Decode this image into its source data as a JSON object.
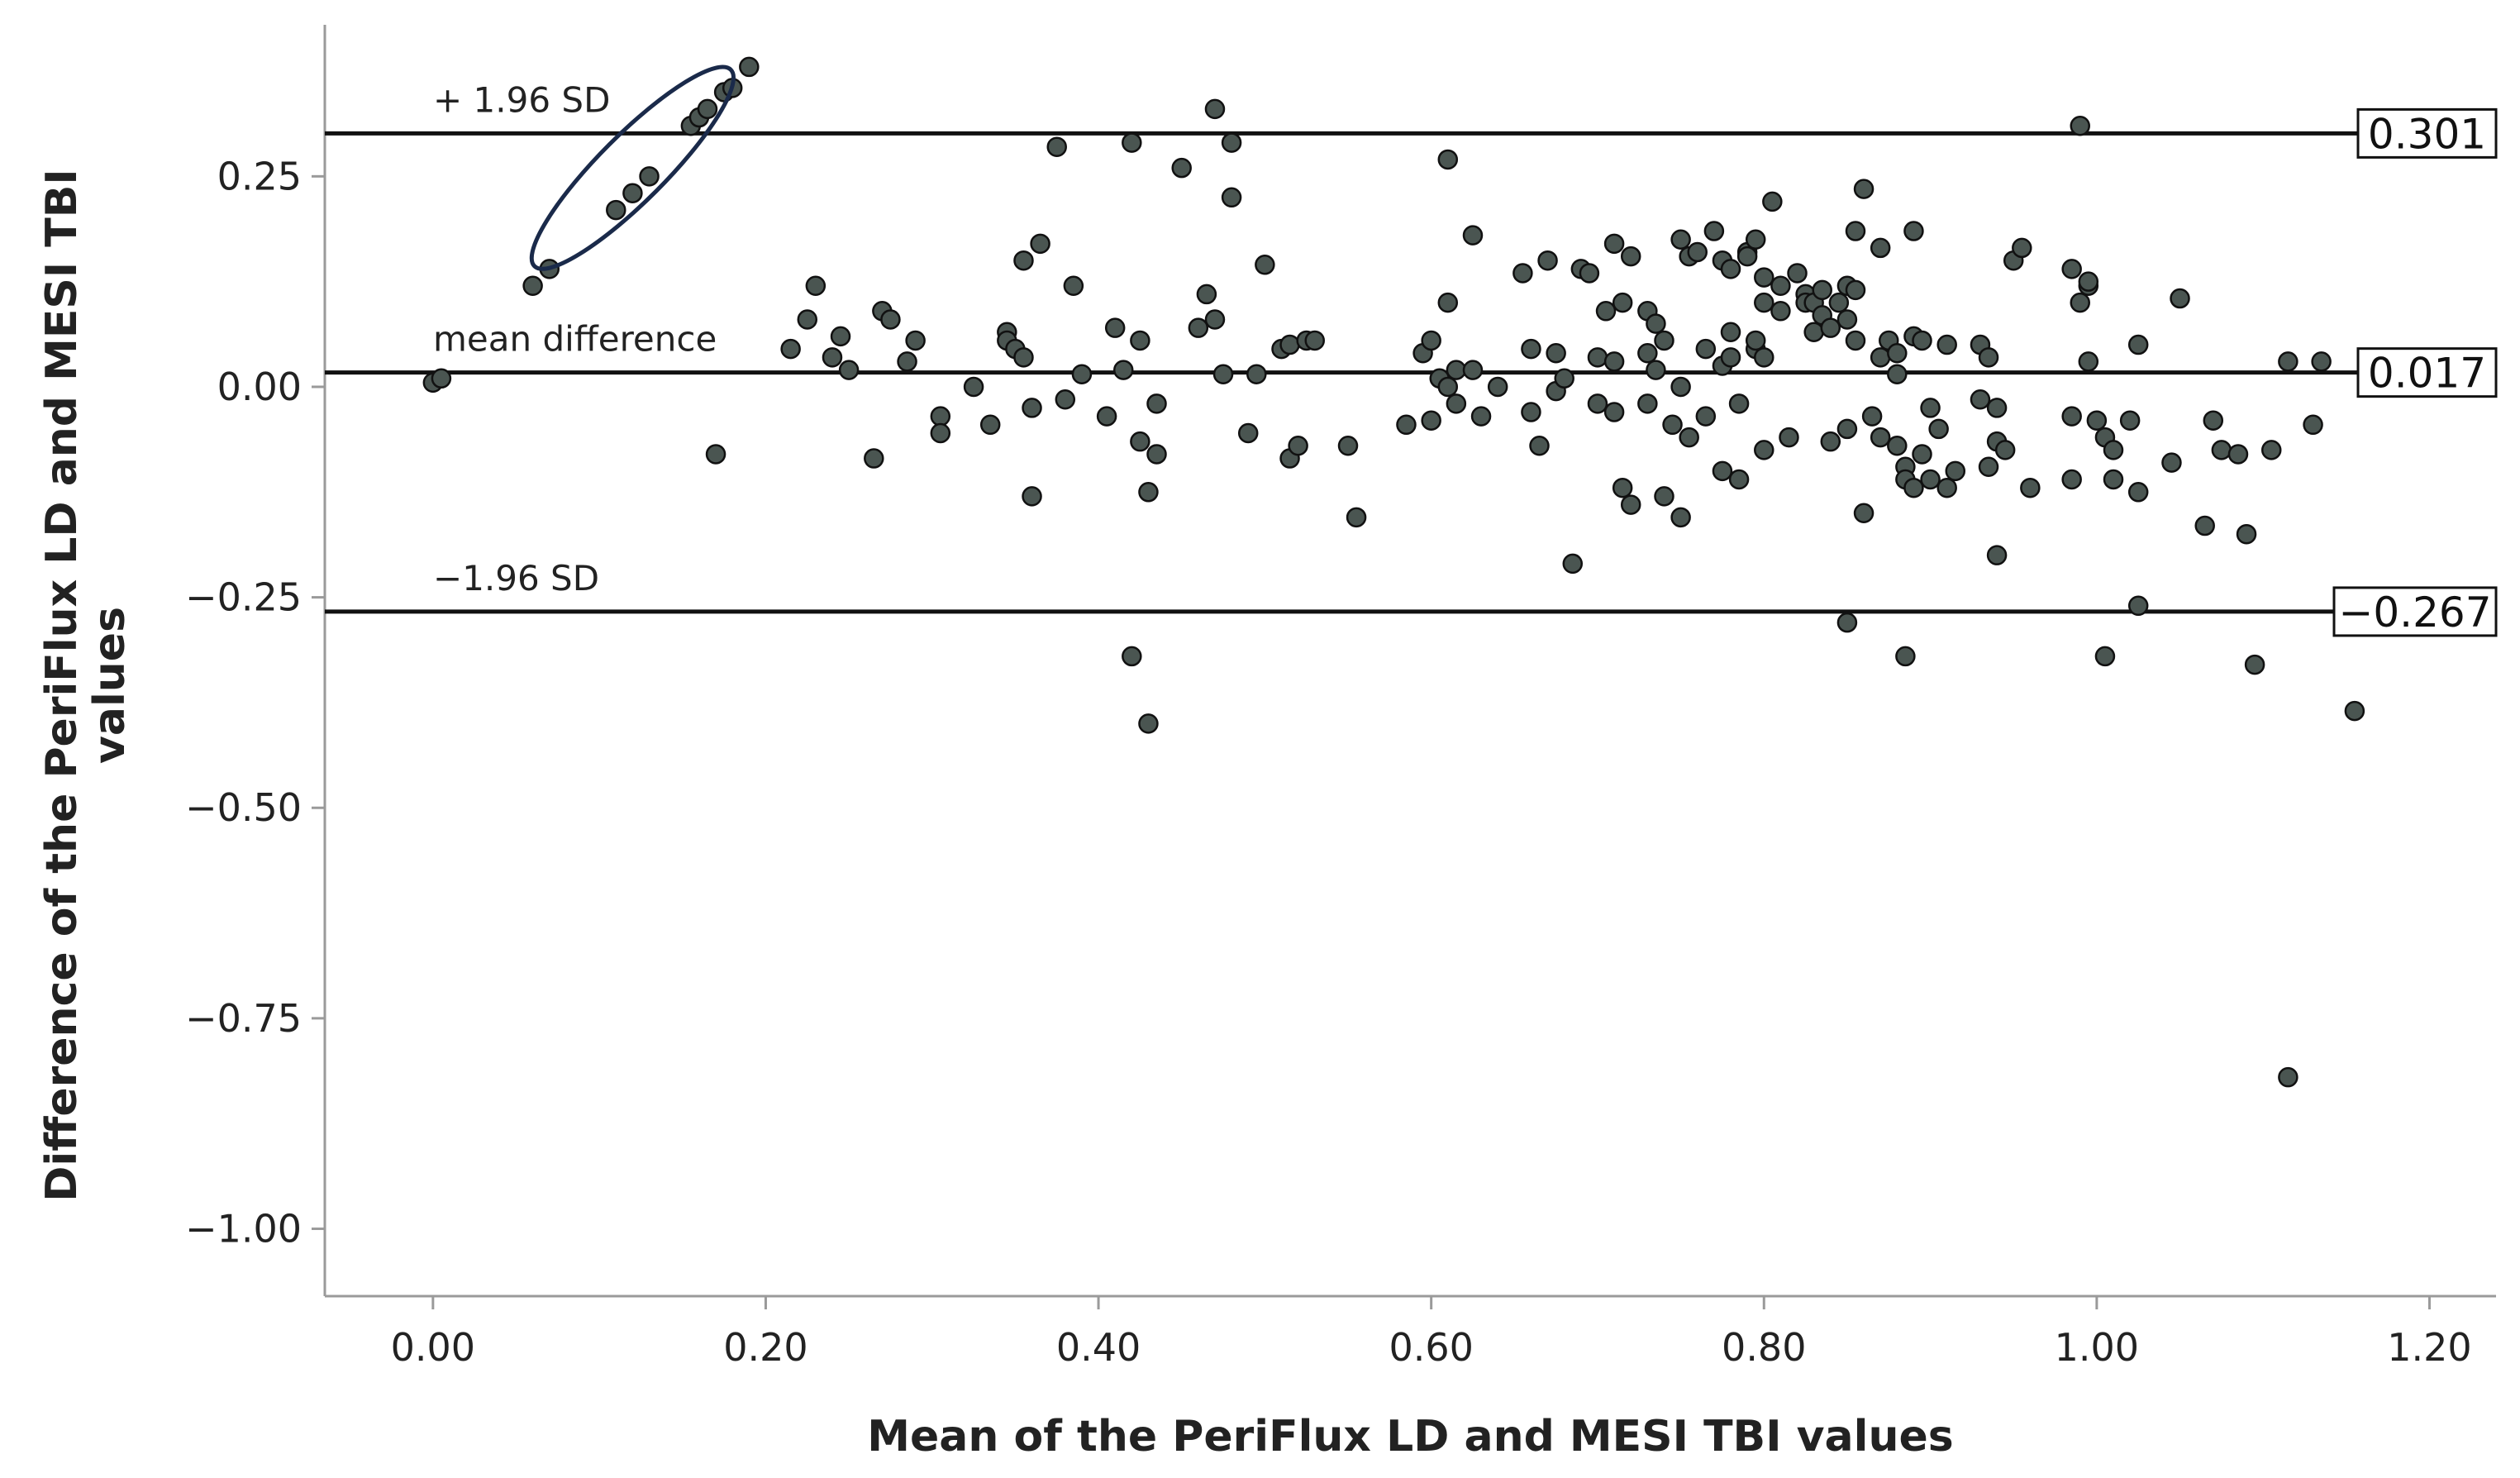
{
  "chart_data": {
    "type": "scatter",
    "title": "",
    "xlabel": "Mean of the PeriFlux LD and MESI TBI values",
    "ylabel_line1": "Difference of the PeriFlux LD and MESI TBI",
    "ylabel_line2": "values",
    "xlim": [
      -0.065,
      1.24
    ],
    "ylim": [
      -1.08,
      0.43
    ],
    "x_ticks": [
      0.0,
      0.2,
      0.4,
      0.6,
      0.8,
      1.0,
      1.2
    ],
    "x_tick_labels": [
      "0.00",
      "0.20",
      "0.40",
      "0.60",
      "0.80",
      "1.00",
      "1.20"
    ],
    "y_ticks": [
      0.25,
      0.0,
      -0.25,
      -0.5,
      -0.75,
      -1.0
    ],
    "y_tick_labels": [
      "0.25",
      "0.00",
      "−0.25",
      "−0.50",
      "−0.75",
      "−1.00"
    ],
    "reference_lines": [
      {
        "name": "upper",
        "value": 0.301,
        "label": "0.301",
        "annotation": "+ 1.96 SD"
      },
      {
        "name": "mean",
        "value": 0.017,
        "label": "0.017",
        "annotation": "mean difference"
      },
      {
        "name": "lower",
        "value": -0.267,
        "label": "−0.267",
        "annotation": "−1.96 SD"
      }
    ],
    "highlight": {
      "shape": "ellipse",
      "cx": 0.12,
      "cy": 0.26,
      "rx": 0.14,
      "ry": 0.045,
      "angle_deg": -45
    },
    "points": [
      [
        0.0,
        0.005
      ],
      [
        0.005,
        0.01
      ],
      [
        0.06,
        0.12
      ],
      [
        0.07,
        0.14
      ],
      [
        0.11,
        0.21
      ],
      [
        0.12,
        0.23
      ],
      [
        0.13,
        0.25
      ],
      [
        0.155,
        0.31
      ],
      [
        0.16,
        0.32
      ],
      [
        0.165,
        0.33
      ],
      [
        0.175,
        0.35
      ],
      [
        0.18,
        0.355
      ],
      [
        0.19,
        0.38
      ],
      [
        0.17,
        -0.08
      ],
      [
        0.215,
        0.045
      ],
      [
        0.225,
        0.08
      ],
      [
        0.23,
        0.12
      ],
      [
        0.24,
        0.035
      ],
      [
        0.245,
        0.06
      ],
      [
        0.25,
        0.02
      ],
      [
        0.265,
        -0.085
      ],
      [
        0.27,
        0.09
      ],
      [
        0.275,
        0.08
      ],
      [
        0.285,
        0.03
      ],
      [
        0.29,
        0.055
      ],
      [
        0.305,
        -0.035
      ],
      [
        0.305,
        -0.055
      ],
      [
        0.325,
        0.0
      ],
      [
        0.335,
        -0.045
      ],
      [
        0.345,
        0.065
      ],
      [
        0.345,
        0.055
      ],
      [
        0.35,
        0.045
      ],
      [
        0.355,
        0.15
      ],
      [
        0.355,
        0.035
      ],
      [
        0.36,
        -0.025
      ],
      [
        0.36,
        -0.13
      ],
      [
        0.365,
        0.17
      ],
      [
        0.375,
        0.285
      ],
      [
        0.38,
        -0.015
      ],
      [
        0.385,
        0.12
      ],
      [
        0.39,
        0.015
      ],
      [
        0.405,
        -0.035
      ],
      [
        0.41,
        0.07
      ],
      [
        0.415,
        0.02
      ],
      [
        0.42,
        0.29
      ],
      [
        0.42,
        -0.32
      ],
      [
        0.425,
        0.055
      ],
      [
        0.425,
        -0.065
      ],
      [
        0.43,
        -0.125
      ],
      [
        0.43,
        -0.4
      ],
      [
        0.435,
        -0.02
      ],
      [
        0.435,
        -0.08
      ],
      [
        0.45,
        0.26
      ],
      [
        0.46,
        0.07
      ],
      [
        0.465,
        0.11
      ],
      [
        0.47,
        0.33
      ],
      [
        0.47,
        0.08
      ],
      [
        0.475,
        0.015
      ],
      [
        0.48,
        0.29
      ],
      [
        0.48,
        0.225
      ],
      [
        0.49,
        -0.055
      ],
      [
        0.495,
        0.015
      ],
      [
        0.5,
        0.145
      ],
      [
        0.51,
        0.045
      ],
      [
        0.515,
        0.05
      ],
      [
        0.515,
        -0.085
      ],
      [
        0.52,
        -0.07
      ],
      [
        0.525,
        0.055
      ],
      [
        0.53,
        0.055
      ],
      [
        0.55,
        -0.07
      ],
      [
        0.555,
        -0.155
      ],
      [
        0.585,
        -0.045
      ],
      [
        0.595,
        0.04
      ],
      [
        0.6,
        0.055
      ],
      [
        0.6,
        -0.04
      ],
      [
        0.605,
        0.01
      ],
      [
        0.61,
        0.0
      ],
      [
        0.61,
        0.1
      ],
      [
        0.61,
        0.27
      ],
      [
        0.615,
        0.02
      ],
      [
        0.615,
        -0.02
      ],
      [
        0.625,
        0.18
      ],
      [
        0.625,
        0.02
      ],
      [
        0.63,
        -0.035
      ],
      [
        0.64,
        0.0
      ],
      [
        0.655,
        0.135
      ],
      [
        0.66,
        0.045
      ],
      [
        0.66,
        -0.03
      ],
      [
        0.665,
        -0.07
      ],
      [
        0.67,
        0.15
      ],
      [
        0.675,
        0.04
      ],
      [
        0.675,
        -0.005
      ],
      [
        0.68,
        0.01
      ],
      [
        0.685,
        -0.21
      ],
      [
        0.69,
        0.14
      ],
      [
        0.695,
        0.135
      ],
      [
        0.7,
        0.035
      ],
      [
        0.7,
        -0.02
      ],
      [
        0.705,
        0.09
      ],
      [
        0.71,
        0.17
      ],
      [
        0.71,
        0.03
      ],
      [
        0.71,
        -0.03
      ],
      [
        0.715,
        0.1
      ],
      [
        0.715,
        -0.12
      ],
      [
        0.72,
        0.155
      ],
      [
        0.72,
        -0.14
      ],
      [
        0.73,
        0.04
      ],
      [
        0.73,
        0.09
      ],
      [
        0.73,
        -0.02
      ],
      [
        0.735,
        0.075
      ],
      [
        0.735,
        0.02
      ],
      [
        0.74,
        0.055
      ],
      [
        0.74,
        -0.13
      ],
      [
        0.745,
        -0.045
      ],
      [
        0.75,
        0.175
      ],
      [
        0.75,
        0.0
      ],
      [
        0.75,
        -0.155
      ],
      [
        0.755,
        0.155
      ],
      [
        0.755,
        -0.06
      ],
      [
        0.76,
        0.16
      ],
      [
        0.765,
        0.045
      ],
      [
        0.765,
        -0.035
      ],
      [
        0.77,
        0.185
      ],
      [
        0.775,
        0.15
      ],
      [
        0.775,
        0.025
      ],
      [
        0.775,
        -0.1
      ],
      [
        0.78,
        0.14
      ],
      [
        0.78,
        0.065
      ],
      [
        0.78,
        0.035
      ],
      [
        0.785,
        -0.11
      ],
      [
        0.785,
        -0.02
      ],
      [
        0.79,
        0.16
      ],
      [
        0.79,
        0.155
      ],
      [
        0.795,
        0.175
      ],
      [
        0.795,
        0.045
      ],
      [
        0.795,
        0.055
      ],
      [
        0.8,
        0.13
      ],
      [
        0.8,
        0.1
      ],
      [
        0.8,
        0.035
      ],
      [
        0.8,
        -0.075
      ],
      [
        0.805,
        0.22
      ],
      [
        0.81,
        0.12
      ],
      [
        0.81,
        0.09
      ],
      [
        0.815,
        -0.06
      ],
      [
        0.82,
        0.135
      ],
      [
        0.825,
        0.11
      ],
      [
        0.825,
        0.1
      ],
      [
        0.83,
        0.1
      ],
      [
        0.83,
        0.065
      ],
      [
        0.835,
        0.085
      ],
      [
        0.835,
        0.115
      ],
      [
        0.84,
        -0.065
      ],
      [
        0.84,
        0.07
      ],
      [
        0.845,
        0.1
      ],
      [
        0.85,
        0.12
      ],
      [
        0.85,
        0.08
      ],
      [
        0.85,
        -0.05
      ],
      [
        0.85,
        -0.28
      ],
      [
        0.855,
        0.185
      ],
      [
        0.855,
        0.055
      ],
      [
        0.855,
        0.115
      ],
      [
        0.86,
        0.235
      ],
      [
        0.86,
        -0.15
      ],
      [
        0.865,
        -0.035
      ],
      [
        0.87,
        0.165
      ],
      [
        0.87,
        0.035
      ],
      [
        0.87,
        -0.06
      ],
      [
        0.875,
        0.055
      ],
      [
        0.88,
        0.04
      ],
      [
        0.88,
        0.015
      ],
      [
        0.88,
        -0.07
      ],
      [
        0.885,
        -0.095
      ],
      [
        0.885,
        -0.11
      ],
      [
        0.885,
        -0.32
      ],
      [
        0.89,
        0.06
      ],
      [
        0.89,
        0.185
      ],
      [
        0.89,
        -0.12
      ],
      [
        0.895,
        0.055
      ],
      [
        0.895,
        -0.08
      ],
      [
        0.9,
        -0.025
      ],
      [
        0.9,
        -0.11
      ],
      [
        0.905,
        -0.05
      ],
      [
        0.91,
        0.05
      ],
      [
        0.91,
        -0.12
      ],
      [
        0.915,
        -0.1
      ],
      [
        0.93,
        0.05
      ],
      [
        0.93,
        -0.015
      ],
      [
        0.935,
        0.035
      ],
      [
        0.935,
        -0.095
      ],
      [
        0.94,
        -0.065
      ],
      [
        0.94,
        -0.025
      ],
      [
        0.94,
        -0.2
      ],
      [
        0.945,
        -0.075
      ],
      [
        0.95,
        0.15
      ],
      [
        0.955,
        0.165
      ],
      [
        0.96,
        -0.12
      ],
      [
        0.985,
        -0.11
      ],
      [
        0.985,
        -0.035
      ],
      [
        0.985,
        0.14
      ],
      [
        0.99,
        0.1
      ],
      [
        0.99,
        0.31
      ],
      [
        0.995,
        0.12
      ],
      [
        0.995,
        0.03
      ],
      [
        0.995,
        0.125
      ],
      [
        1.0,
        -0.04
      ],
      [
        1.005,
        -0.06
      ],
      [
        1.005,
        -0.32
      ],
      [
        1.01,
        -0.075
      ],
      [
        1.01,
        -0.11
      ],
      [
        1.02,
        -0.04
      ],
      [
        1.025,
        0.05
      ],
      [
        1.025,
        -0.125
      ],
      [
        1.025,
        -0.26
      ],
      [
        1.045,
        -0.09
      ],
      [
        1.05,
        0.105
      ],
      [
        1.065,
        -0.165
      ],
      [
        1.07,
        -0.04
      ],
      [
        1.075,
        -0.075
      ],
      [
        1.085,
        -0.08
      ],
      [
        1.09,
        -0.175
      ],
      [
        1.095,
        -0.33
      ],
      [
        1.105,
        -0.075
      ],
      [
        1.115,
        0.03
      ],
      [
        1.115,
        -0.82
      ],
      [
        1.13,
        -0.045
      ],
      [
        1.135,
        0.03
      ],
      [
        1.155,
        -0.385
      ]
    ]
  }
}
